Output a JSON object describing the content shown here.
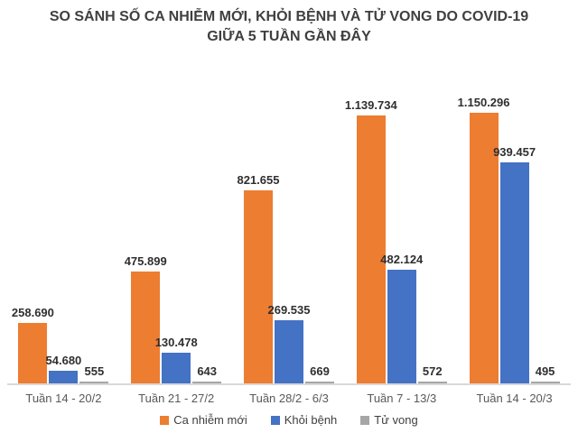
{
  "title": {
    "line1": "SO SÁNH SỐ CA NHIỄM MỚI, KHỎI BỆNH VÀ TỬ VONG DO COVID-19",
    "line2": "GIỮA 5 TUẦN GẦN ĐÂY"
  },
  "colors": {
    "new_cases": "#ED7D31",
    "recovered": "#4472C4",
    "deaths": "#A6A6A6",
    "axis_line": "#D9D9D9",
    "title_text": "#3F3F3F",
    "data_label_text": "#2F2F2F",
    "category_text": "#595959"
  },
  "chart_data": {
    "type": "bar",
    "title": "SO SÁNH SỐ CA NHIỄM MỚI, KHỎI BỆNH VÀ TỬ VONG DO COVID-19 GIỮA 5 TUẦN GẦN ĐÂY",
    "categories": [
      "Tuần 14 - 20/2",
      "Tuần 21 - 27/2",
      "Tuần 28/2 - 6/3",
      "Tuần 7 - 13/3",
      "Tuần 14 - 20/3"
    ],
    "series": [
      {
        "name": "Ca nhiễm mới",
        "key": "new-cases",
        "color_key": "new_cases",
        "values": [
          258690,
          475899,
          821655,
          1139734,
          1150296
        ],
        "labels": [
          "258.690",
          "475.899",
          "821.655",
          "1.139.734",
          "1.150.296"
        ]
      },
      {
        "name": "Khỏi bệnh",
        "key": "recovered",
        "color_key": "recovered",
        "values": [
          54680,
          130478,
          269535,
          482124,
          939457
        ],
        "labels": [
          "54.680",
          "130.478",
          "269.535",
          "482.124",
          "939.457"
        ]
      },
      {
        "name": "Tử vong",
        "key": "deaths",
        "color_key": "deaths",
        "values": [
          555,
          643,
          669,
          572,
          495
        ],
        "labels": [
          "555",
          "643",
          "669",
          "572",
          "495"
        ]
      }
    ],
    "xlabel": "",
    "ylabel": "",
    "ylim": [
      0,
      1150296
    ],
    "grid": false,
    "y_axis_visible": false,
    "data_labels": true,
    "legend_position": "bottom"
  },
  "legend": {
    "items": [
      {
        "label": "Ca nhiễm mới",
        "color": "#ED7D31"
      },
      {
        "label": "Khỏi bệnh",
        "color": "#4472C4"
      },
      {
        "label": "Tử vong",
        "color": "#A6A6A6"
      }
    ]
  }
}
